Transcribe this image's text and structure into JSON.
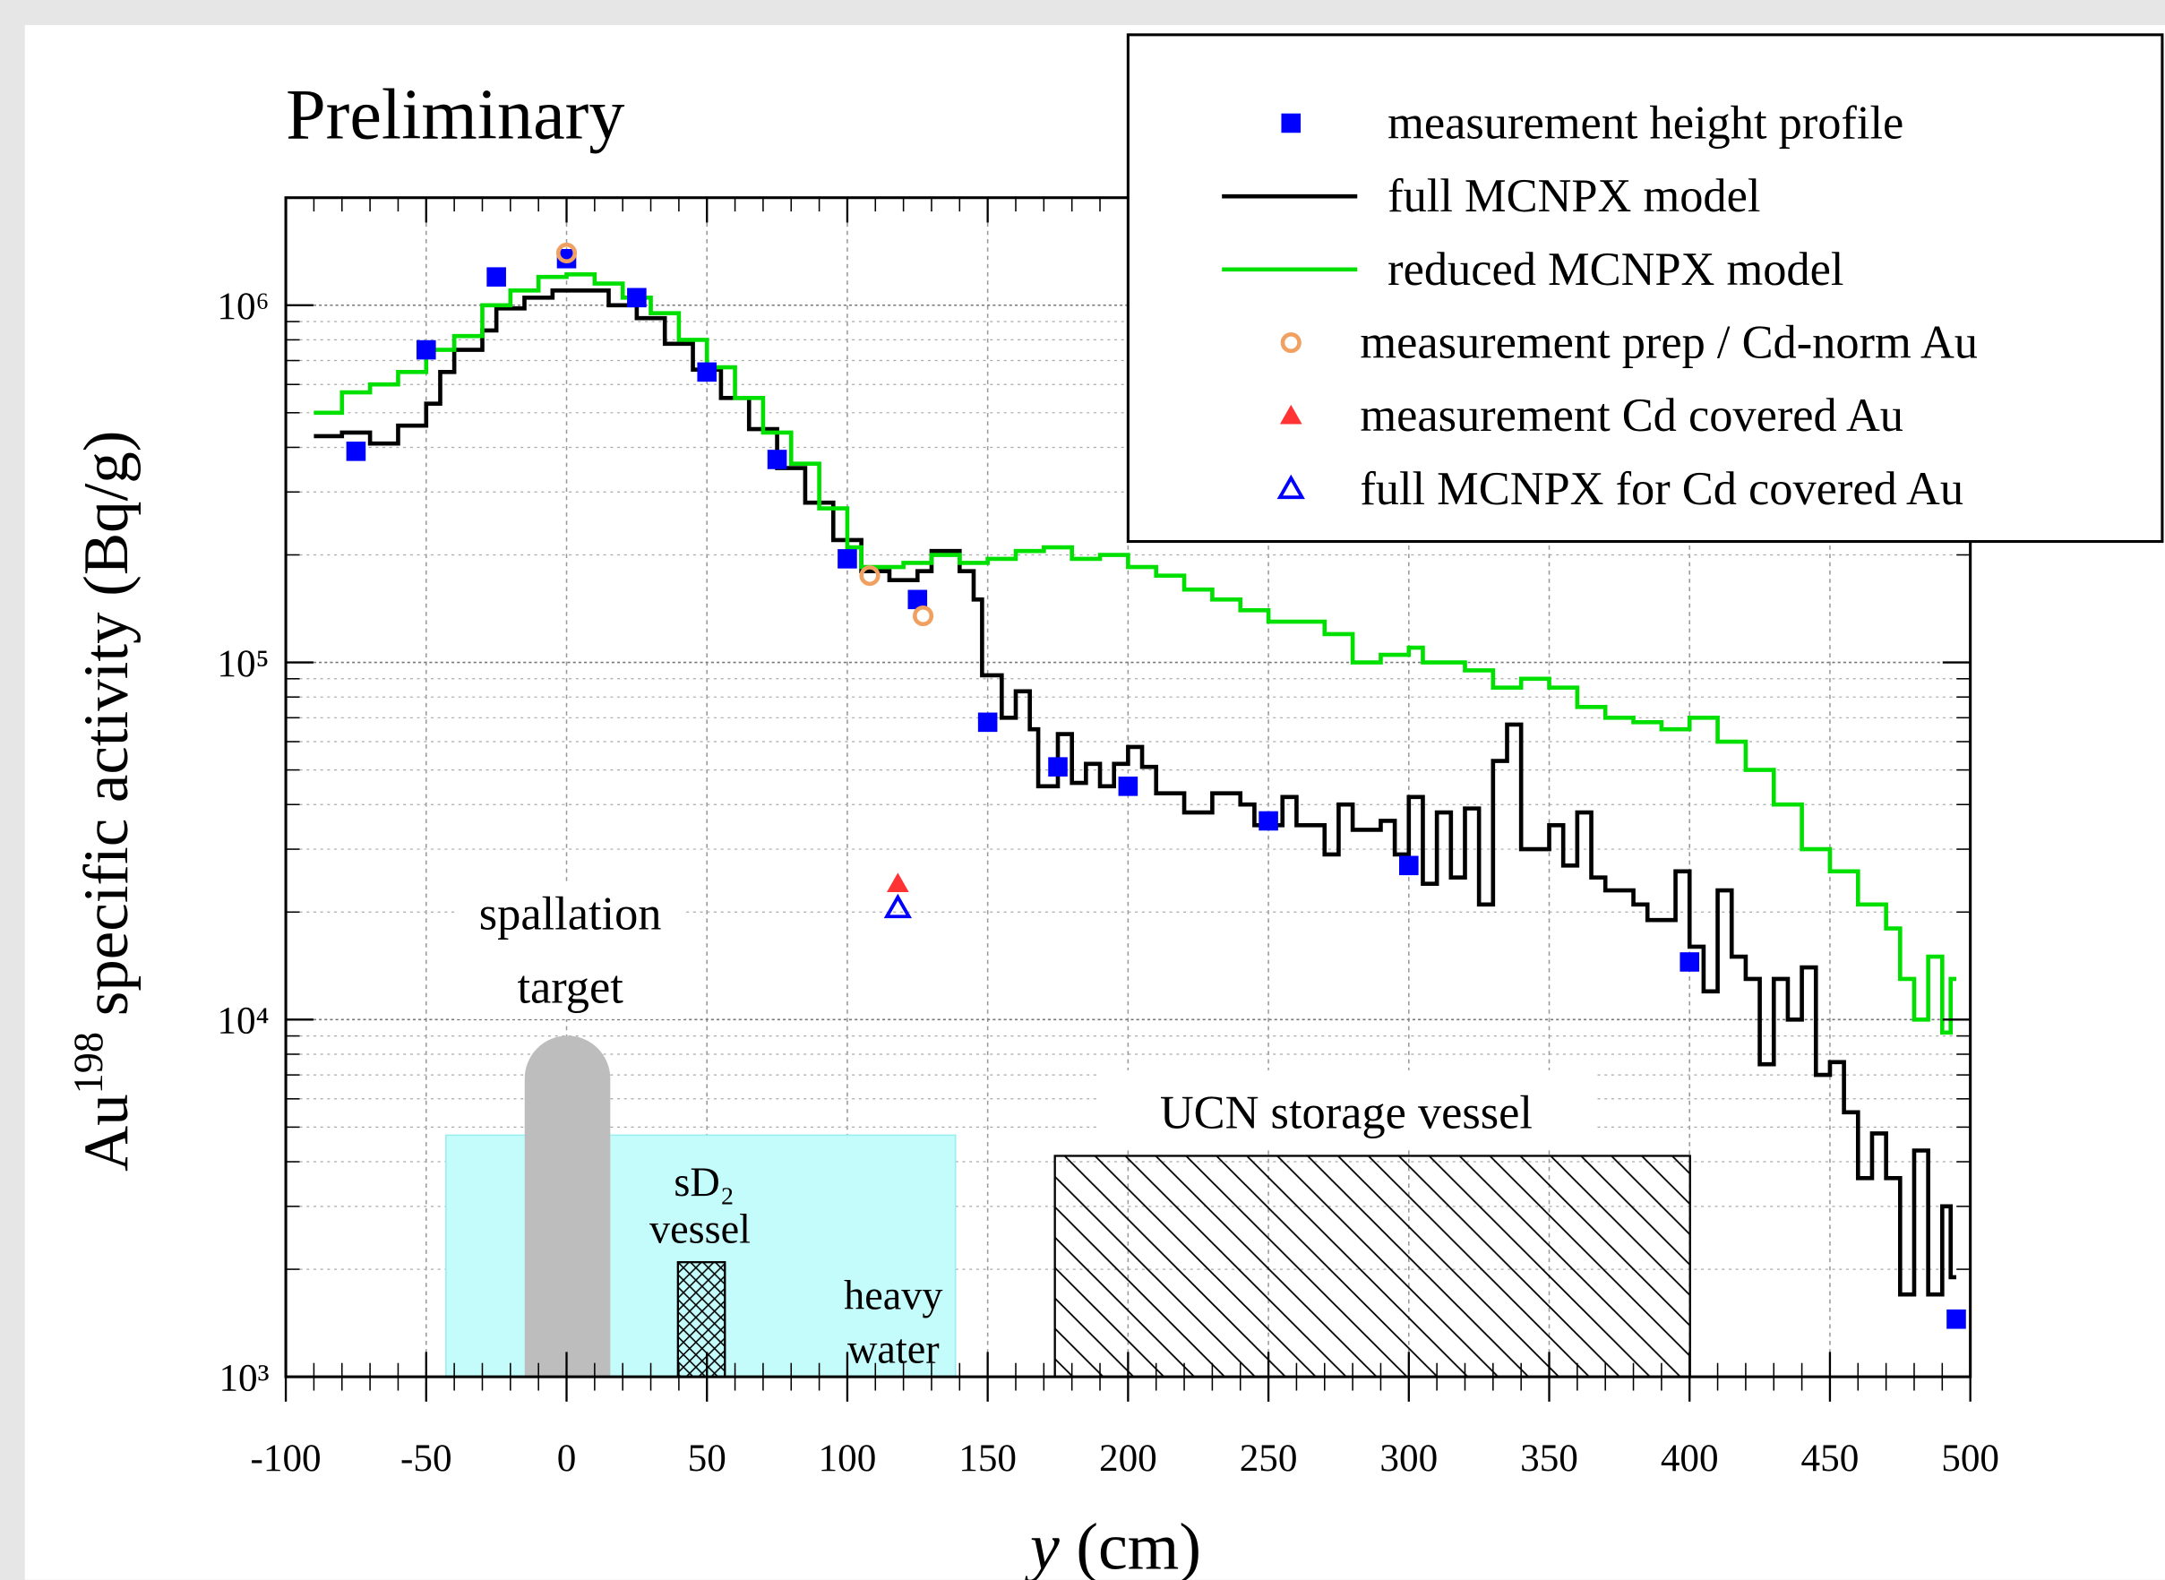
{
  "chart_data": {
    "type": "scatter",
    "title": "Preliminary",
    "x_label": {
      "var": "y",
      "unit": "(cm)"
    },
    "y_label": {
      "base": "Au",
      "sup": "198",
      "rest": "specific activity (Bq/g)"
    },
    "xlim": [
      -100,
      500
    ],
    "xticks": [
      -100,
      -50,
      0,
      50,
      100,
      150,
      200,
      250,
      300,
      350,
      400,
      450,
      500
    ],
    "ylim": [
      1000,
      2000000
    ],
    "yticks": [
      {
        "value": 1000,
        "label": "10³"
      },
      {
        "value": 10000,
        "label": "10⁴"
      },
      {
        "value": 100000,
        "label": "10⁵"
      },
      {
        "value": 1000000,
        "label": "10⁶"
      }
    ],
    "log_y": true,
    "grid": true,
    "legend": "upper right",
    "series": [
      {
        "name": "measurement height profile",
        "color": "#0000ff",
        "marker": "square",
        "x": [
          -75,
          -50,
          -25,
          0,
          25,
          50,
          75,
          100,
          125,
          150,
          175,
          200,
          250,
          300,
          400,
          495
        ],
        "values": [
          390000,
          750000,
          1200000,
          1350000,
          1050000,
          650000,
          370000,
          195000,
          150000,
          68000,
          51000,
          45000,
          36000,
          27000,
          14500,
          1450
        ]
      },
      {
        "name": "full MCNPX model",
        "color": "#000000",
        "marker": "step",
        "x": [
          -90,
          -80,
          -70,
          -60,
          -50,
          -45,
          -40,
          -30,
          -25,
          -15,
          -5,
          5,
          15,
          25,
          35,
          45,
          55,
          65,
          75,
          85,
          95,
          105,
          115,
          125,
          130,
          140,
          145,
          148,
          155,
          160,
          165,
          168,
          175,
          180,
          185,
          190,
          195,
          200,
          205,
          210,
          220,
          230,
          240,
          245,
          255,
          260,
          270,
          275,
          280,
          290,
          295,
          300,
          305,
          310,
          315,
          320,
          325,
          330,
          335,
          340,
          350,
          355,
          360,
          365,
          370,
          380,
          385,
          395,
          400,
          405,
          410,
          415,
          420,
          425,
          430,
          435,
          440,
          445,
          450,
          455,
          460,
          465,
          470,
          475,
          480,
          485,
          490,
          493,
          495
        ],
        "values": [
          430000,
          440000,
          410000,
          460000,
          530000,
          650000,
          750000,
          850000,
          980000,
          1050000,
          1100000,
          1100000,
          1000000,
          920000,
          780000,
          660000,
          550000,
          450000,
          350000,
          280000,
          220000,
          180000,
          170000,
          180000,
          205000,
          180000,
          150000,
          92000,
          70000,
          83000,
          65000,
          45000,
          63000,
          46000,
          52000,
          45000,
          52000,
          58000,
          51000,
          43000,
          38000,
          43000,
          40000,
          35000,
          42000,
          35000,
          29000,
          40000,
          34000,
          36000,
          29000,
          42000,
          24000,
          38000,
          25000,
          39000,
          21000,
          53000,
          67000,
          30000,
          35000,
          27000,
          38000,
          25000,
          23000,
          21000,
          19000,
          26000,
          16000,
          12000,
          23000,
          15000,
          13000,
          7500,
          13000,
          10000,
          14000,
          7000,
          7600,
          5500,
          3600,
          4800,
          3600,
          1700,
          4300,
          1700,
          3000,
          1900,
          1900
        ]
      },
      {
        "name": "reduced MCNPX model",
        "color": "#00e000",
        "marker": "step",
        "x": [
          -90,
          -80,
          -70,
          -60,
          -50,
          -40,
          -30,
          -20,
          -10,
          0,
          10,
          20,
          30,
          40,
          50,
          60,
          70,
          80,
          90,
          100,
          105,
          120,
          130,
          140,
          150,
          160,
          170,
          180,
          190,
          200,
          210,
          220,
          230,
          240,
          250,
          260,
          270,
          280,
          290,
          300,
          305,
          320,
          330,
          340,
          350,
          360,
          370,
          380,
          390,
          400,
          410,
          420,
          430,
          440,
          450,
          460,
          470,
          475,
          480,
          485,
          490,
          493,
          495
        ],
        "values": [
          500000,
          570000,
          600000,
          650000,
          750000,
          820000,
          1000000,
          1100000,
          1200000,
          1220000,
          1150000,
          1050000,
          950000,
          800000,
          670000,
          550000,
          440000,
          360000,
          270000,
          210000,
          185000,
          190000,
          200000,
          190000,
          195000,
          205000,
          210000,
          195000,
          200000,
          185000,
          175000,
          160000,
          150000,
          140000,
          130000,
          130000,
          120000,
          100000,
          105000,
          110000,
          100000,
          95000,
          85000,
          90000,
          85000,
          75000,
          70000,
          68000,
          65000,
          70000,
          60000,
          50000,
          40000,
          30000,
          26000,
          21000,
          18000,
          13000,
          10000,
          15000,
          9200,
          13000,
          13000
        ]
      },
      {
        "name": "measurement prep / Cd-norm Au",
        "color": "#f0a060",
        "marker": "circle",
        "x": [
          0,
          108,
          127
        ],
        "values": [
          1400000,
          175000,
          135000
        ]
      },
      {
        "name": "measurement Cd covered Au",
        "color": "#ff3333",
        "marker": "triangle",
        "x": [
          118
        ],
        "values": [
          24000
        ]
      },
      {
        "name": "full MCNPX for Cd covered Au",
        "color": "#0000ff",
        "marker": "triangle-open",
        "x": [
          118
        ],
        "values": [
          20500
        ]
      }
    ],
    "annotations": {
      "spallation": "spallation",
      "target": "target",
      "sd2": "sD₂",
      "vessel": "vessel",
      "heavy": "heavy",
      "water": "water",
      "ucn": "UCN storage vessel"
    }
  }
}
